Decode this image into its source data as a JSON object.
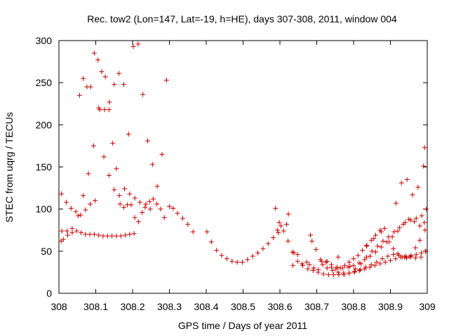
{
  "chart_data": {
    "type": "scatter",
    "title": "Rec. tow2 (Lon=147, Lat=-19, h=HE), days 307-308, 2011, window 004",
    "xlabel": "GPS time / Days of year 2011",
    "ylabel": "STEC from uqrg / TECUs",
    "xlim": [
      308,
      309
    ],
    "ylim": [
      0,
      300
    ],
    "grid": false,
    "legend": "none",
    "marker": "plus",
    "colors": {
      "points": "#cc0000",
      "axes": "#000000"
    },
    "xticks": [
      308,
      308.1,
      308.2,
      308.3,
      308.4,
      308.5,
      308.6,
      308.7,
      308.8,
      308.9,
      309
    ],
    "xtick_labels": [
      "308",
      "308.1",
      "308.2",
      "308.3",
      "308.4",
      "308.5",
      "308.6",
      "308.7",
      "308.8",
      "308.9",
      "309"
    ],
    "yticks": [
      0,
      50,
      100,
      150,
      200,
      250,
      300
    ],
    "ytick_labels": [
      "0",
      "50",
      "100",
      "150",
      "200",
      "250",
      "300"
    ],
    "series": [
      {
        "name": "STEC",
        "x": [
          308.006,
          308.012,
          308.024,
          308.036,
          308.048,
          308.06,
          308.072,
          308.084,
          308.096,
          308.108,
          308.12,
          308.132,
          308.144,
          308.156,
          308.168,
          308.18,
          308.192,
          308.204,
          308.007,
          308.02,
          308.033,
          308.046,
          308.059,
          308.072,
          308.085,
          308.098,
          308.111,
          308.124,
          308.137,
          308.15,
          308.163,
          308.176,
          308.189,
          308.202,
          308.215,
          308.228,
          308.241,
          308.254,
          308.267,
          308.28,
          308.292,
          308.3,
          308.31,
          308.322,
          308.336,
          308.35,
          308.364,
          308.008,
          308.022,
          308.036,
          308.052,
          308.066,
          308.08,
          308.094,
          308.108,
          308.122,
          308.136,
          308.15,
          308.164,
          308.178,
          308.192,
          308.206,
          308.22,
          308.234,
          308.248,
          308.056,
          308.066,
          308.076,
          308.086,
          308.096,
          308.106,
          308.116,
          308.126,
          308.136,
          308.146,
          308.156,
          308.166,
          308.176,
          308.186,
          308.196,
          308.206,
          308.216,
          308.226,
          308.236,
          308.246,
          308.256,
          308.266,
          308.276,
          308.286,
          308.402,
          308.414,
          308.428,
          308.442,
          308.456,
          308.47,
          308.484,
          308.498,
          308.512,
          308.526,
          308.54,
          308.554,
          308.568,
          308.582,
          308.596,
          308.61,
          308.622,
          308.634,
          308.648,
          308.662,
          308.676,
          308.69,
          308.704,
          308.718,
          308.732,
          308.746,
          308.76,
          308.774,
          308.788,
          308.802,
          308.816,
          308.83,
          308.844,
          308.858,
          308.872,
          308.886,
          308.9,
          308.914,
          308.928,
          308.942,
          308.956,
          308.97,
          308.984,
          308.995,
          308.683,
          308.698,
          308.713,
          308.728,
          308.743,
          308.758,
          308.773,
          308.788,
          308.803,
          308.818,
          308.833,
          308.848,
          308.863,
          308.878,
          308.893,
          308.908,
          308.923,
          308.938,
          308.953,
          308.968,
          308.983,
          308.996,
          308.68,
          308.692,
          308.704,
          308.716,
          308.728,
          308.74,
          308.752,
          308.764,
          308.776,
          308.788,
          308.8,
          308.812,
          308.824,
          308.836,
          308.848,
          308.86,
          308.872,
          308.884,
          308.896,
          308.908,
          308.92,
          308.932,
          308.944,
          308.956,
          308.968,
          308.98,
          308.992,
          308.79,
          308.805,
          308.82,
          308.835,
          308.85,
          308.865,
          308.88,
          308.895,
          308.91,
          308.925,
          308.94,
          308.955,
          308.97,
          308.985,
          308.997,
          308.71,
          308.725,
          308.74,
          308.755,
          308.77,
          308.785,
          308.8,
          308.815,
          308.83,
          308.845,
          308.86,
          308.875,
          308.89,
          308.905,
          308.92,
          308.935,
          308.95,
          308.965,
          308.98,
          308.994,
          308.588,
          308.598,
          308.618,
          308.638,
          308.593,
          308.603,
          308.623,
          308.635,
          308.648,
          308.66,
          308.673,
          308.687,
          308.758,
          308.835,
          308.855,
          308.875,
          308.915,
          308.93,
          308.945,
          308.96,
          308.975,
          308.99,
          308.993
        ],
        "y": [
          62,
          64,
          69,
          72,
          74,
          72,
          70,
          70,
          70,
          69,
          68,
          68,
          68,
          68,
          68,
          69,
          70,
          71,
          118,
          108,
          101,
          97,
          93,
          99,
          106,
          110,
          218,
          218,
          227,
          248,
          261,
          248,
          189,
          293,
          296,
          236,
          181,
          153,
          127,
          165,
          253,
          103,
          101,
          95,
          89,
          82,
          73,
          74,
          74,
          77,
          92,
          116,
          142,
          175,
          220,
          162,
          140,
          123,
          116,
          124,
          118,
          113,
          108,
          102,
          100,
          235,
          255,
          245,
          245,
          285,
          277,
          263,
          257,
          218,
          178,
          148,
          106,
          102,
          105,
          105,
          90,
          85,
          96,
          106,
          109,
          112,
          106,
          100,
          90,
          73,
          61,
          51,
          45,
          41,
          38,
          37,
          37,
          40,
          44,
          48,
          53,
          59,
          66,
          72,
          74,
          62,
          49,
          38,
          33,
          29,
          27,
          25,
          23,
          22,
          22,
          22,
          22,
          24,
          25,
          27,
          29,
          31,
          33,
          35,
          37,
          39,
          41,
          43,
          44,
          45,
          46,
          48,
          50,
          69,
          52,
          38,
          30,
          27,
          25,
          24,
          24,
          26,
          28,
          31,
          34,
          37,
          41,
          44,
          46,
          45,
          43,
          43,
          42,
          43,
          50,
          34,
          30,
          28,
          34,
          38,
          31,
          29,
          30,
          33,
          37,
          41,
          45,
          51,
          57,
          63,
          69,
          75,
          77,
          61,
          53,
          47,
          43,
          42,
          44,
          54,
          63,
          84,
          32,
          29,
          35,
          43,
          50,
          56,
          62,
          67,
          73,
          78,
          84,
          87,
          89,
          92,
          100,
          40,
          37,
          34,
          31,
          30,
          31,
          33,
          36,
          40,
          44,
          49,
          55,
          61,
          67,
          74,
          82,
          88,
          85,
          80,
          75,
          101,
          84,
          82,
          48,
          75,
          80,
          94,
          33,
          46,
          35,
          37,
          62,
          43,
          56,
          65,
          73,
          107,
          131,
          135,
          117,
          126,
          151,
          173
        ]
      }
    ]
  }
}
